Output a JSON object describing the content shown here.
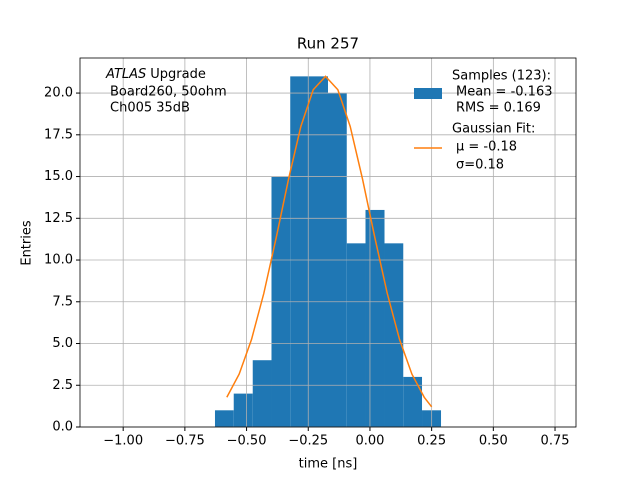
{
  "chart_data": {
    "type": "histogram",
    "title": "Run 257",
    "xlabel": "time [ns]",
    "ylabel": "Entries",
    "annotation": {
      "italic": "ATLAS",
      "first": "Upgrade",
      "lines": [
        "Board260, 50ohm",
        "Ch005 35dB"
      ]
    },
    "bins": [
      -0.628,
      -0.552,
      -0.475,
      -0.399,
      -0.323,
      -0.247,
      -0.17,
      -0.094,
      -0.018,
      0.059,
      0.135,
      0.211,
      0.288
    ],
    "values": [
      1,
      2,
      4,
      15,
      21,
      21,
      20,
      11,
      13,
      11,
      3,
      1
    ],
    "color": "#1f77b4",
    "name": [
      "Samples (123):",
      "Mean = -0.163",
      "RMS = 0.169"
    ],
    "fit": {
      "type": "line",
      "name": [
        "Gaussian Fit:",
        "μ = -0.18",
        "σ=0.18"
      ],
      "color": "#ff7f0e",
      "x": [
        -0.58,
        -0.53,
        -0.48,
        -0.43,
        -0.38,
        -0.33,
        -0.28,
        -0.23,
        -0.18,
        -0.13,
        -0.08,
        -0.03,
        0.02,
        0.07,
        0.12,
        0.17,
        0.22,
        0.25
      ],
      "values": [
        1.78,
        3.17,
        5.24,
        8.01,
        11.33,
        14.84,
        18.0,
        20.2,
        21,
        20.2,
        18.0,
        14.84,
        11.33,
        8.01,
        5.24,
        3.17,
        1.78,
        1.21
      ]
    },
    "xlim": [
      -1.175,
      0.835
    ],
    "ylim": [
      0,
      22.1
    ],
    "xticks": [
      {
        "value": -1,
        "label": "−1.00"
      },
      {
        "value": -0.75,
        "label": "−0.75"
      },
      {
        "value": -0.5,
        "label": "−0.50"
      },
      {
        "value": -0.25,
        "label": "−0.25"
      },
      {
        "value": 0,
        "label": "0.00"
      },
      {
        "value": 0.25,
        "label": "0.25"
      },
      {
        "value": 0.5,
        "label": "0.50"
      },
      {
        "value": 0.75,
        "label": "0.75"
      }
    ],
    "yticks": [
      {
        "value": 0,
        "label": "0.0"
      },
      2.5,
      {
        "value": 5,
        "label": "5.0"
      },
      7.5,
      {
        "value": 10,
        "label": "10.0"
      },
      12.5,
      {
        "value": 15,
        "label": "15.0"
      },
      17.5,
      {
        "value": 20,
        "label": "20.0"
      }
    ],
    "grid": true,
    "legend": "upper right"
  }
}
